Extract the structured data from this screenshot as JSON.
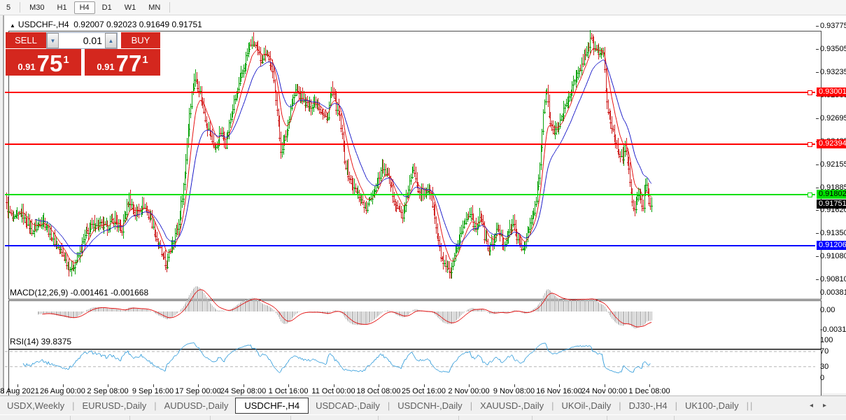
{
  "toolbar": {
    "timeframes": [
      "5",
      "M30",
      "H1",
      "H4",
      "D1",
      "W1",
      "MN"
    ],
    "active_timeframe": "H4"
  },
  "header": {
    "symbol": "USDCHF-,H4",
    "open": "0.92007",
    "high": "0.92023",
    "low": "0.91649",
    "close": "0.91751"
  },
  "trade_panel": {
    "sell_label": "SELL",
    "buy_label": "BUY",
    "volume": "0.01",
    "sell_price_small": "0.91",
    "sell_price_big": "75",
    "sell_price_sup": "1",
    "buy_price_small": "0.91",
    "buy_price_big": "77",
    "buy_price_sup": "1"
  },
  "indicators": {
    "macd_label": "MACD(12,26,9) -0.001461 -0.001668",
    "macd_axis": [
      "0.003811",
      "0.00",
      "-0.003115"
    ],
    "rsi_label": "RSI(14) 39.8375",
    "rsi_axis": [
      "100",
      "70",
      "30",
      "0"
    ]
  },
  "tabs": {
    "items": [
      "USDX,Weekly",
      "EURUSD-,Daily",
      "AUDUSD-,Daily",
      "USDCHF-,H4",
      "USDCAD-,Daily",
      "USDCNH-,Daily",
      "XAUUSD-,Daily",
      "UKOil-,Daily",
      "DJ30-,H4",
      "UK100-,Daily"
    ],
    "active": "USDCHF-,H4",
    "scroll_left_icon": "◂",
    "scroll_right_icon": "▸"
  },
  "colors": {
    "up_candle": "#0aa30a",
    "down_candle": "#cf2323",
    "ma_fast": "#e60f0f",
    "ma_slow": "#1818c8",
    "level_red": "#ff0000",
    "level_green": "#00e000",
    "level_blue": "#0000ff",
    "bid_badge_bg": "#000000",
    "macd_hist": "#b8b8b8",
    "macd_signal": "#e00000",
    "rsi_line": "#3aa0dc",
    "panel_red": "#d4271e"
  },
  "chart_data": {
    "type": "candlestick",
    "symbol": "USDCHF",
    "timeframe": "H4",
    "ohlc_current": {
      "open": 0.92007,
      "high": 0.92023,
      "low": 0.91649,
      "close": 0.91751
    },
    "price_ticks": [
      "0.93775",
      "0.93505",
      "0.93235",
      "0.92965",
      "0.92695",
      "0.92425",
      "0.92155",
      "0.91885",
      "0.91620",
      "0.91350",
      "0.91080",
      "0.90810"
    ],
    "x_ticks": [
      "18 Aug 2021",
      "26 Aug 00:00",
      "2 Sep 08:00",
      "9 Sep 16:00",
      "17 Sep 00:00",
      "24 Sep 08:00",
      "1 Oct 16:00",
      "11 Oct 00:00",
      "18 Oct 08:00",
      "25 Oct 16:00",
      "2 Nov 00:00",
      "9 Nov 08:00",
      "16 Nov 16:00",
      "24 Nov 00:00",
      "1 Dec 08:00"
    ],
    "ylim": [
      0.9081,
      0.93775
    ],
    "levels": [
      {
        "value": 0.93001,
        "label": "0.93001",
        "color": "red"
      },
      {
        "value": 0.92394,
        "label": "0.92394",
        "color": "red"
      },
      {
        "value": 0.91802,
        "label": "0.91802",
        "color": "green"
      },
      {
        "value": 0.91206,
        "label": "0.91206",
        "color": "blue"
      }
    ],
    "bid": {
      "value": 0.91751,
      "label": "0.91751"
    },
    "ma_fast_period": 10,
    "ma_slow_period": 24,
    "macd": {
      "fast": 12,
      "slow": 26,
      "signal": 9,
      "main_value": -0.001461,
      "signal_value": -0.001668,
      "axis_max": 0.003811,
      "axis_min": -0.003115
    },
    "rsi": {
      "period": 14,
      "value": 39.8375,
      "levels": [
        70,
        30
      ]
    },
    "close_anchors": [
      [
        8,
        0.9168
      ],
      [
        18,
        0.915
      ],
      [
        30,
        0.916
      ],
      [
        45,
        0.9138
      ],
      [
        60,
        0.9152
      ],
      [
        75,
        0.9128
      ],
      [
        90,
        0.9108
      ],
      [
        100,
        0.9094
      ],
      [
        110,
        0.9106
      ],
      [
        122,
        0.9136
      ],
      [
        135,
        0.9148
      ],
      [
        150,
        0.9142
      ],
      [
        162,
        0.9152
      ],
      [
        172,
        0.9136
      ],
      [
        183,
        0.9178
      ],
      [
        192,
        0.9158
      ],
      [
        203,
        0.917
      ],
      [
        215,
        0.915
      ],
      [
        228,
        0.9116
      ],
      [
        236,
        0.9096
      ],
      [
        245,
        0.9126
      ],
      [
        254,
        0.9146
      ],
      [
        262,
        0.92
      ],
      [
        270,
        0.9282
      ],
      [
        277,
        0.932
      ],
      [
        284,
        0.9304
      ],
      [
        292,
        0.927
      ],
      [
        300,
        0.9248
      ],
      [
        307,
        0.9233
      ],
      [
        314,
        0.9254
      ],
      [
        321,
        0.924
      ],
      [
        330,
        0.9278
      ],
      [
        340,
        0.9308
      ],
      [
        350,
        0.934
      ],
      [
        358,
        0.936
      ],
      [
        365,
        0.9352
      ],
      [
        372,
        0.9338
      ],
      [
        379,
        0.935
      ],
      [
        386,
        0.933
      ],
      [
        393,
        0.9298
      ],
      [
        400,
        0.9233
      ],
      [
        408,
        0.9252
      ],
      [
        415,
        0.9288
      ],
      [
        422,
        0.9303
      ],
      [
        430,
        0.9294
      ],
      [
        440,
        0.9284
      ],
      [
        450,
        0.929
      ],
      [
        460,
        0.9276
      ],
      [
        466,
        0.9267
      ],
      [
        472,
        0.9304
      ],
      [
        478,
        0.9288
      ],
      [
        485,
        0.9268
      ],
      [
        492,
        0.9218
      ],
      [
        500,
        0.9196
      ],
      [
        508,
        0.9184
      ],
      [
        515,
        0.9176
      ],
      [
        522,
        0.9163
      ],
      [
        530,
        0.918
      ],
      [
        538,
        0.9196
      ],
      [
        545,
        0.9214
      ],
      [
        552,
        0.9204
      ],
      [
        560,
        0.9182
      ],
      [
        568,
        0.9163
      ],
      [
        575,
        0.9156
      ],
      [
        583,
        0.919
      ],
      [
        590,
        0.9213
      ],
      [
        597,
        0.9186
      ],
      [
        605,
        0.918
      ],
      [
        612,
        0.919
      ],
      [
        618,
        0.9165
      ],
      [
        624,
        0.913
      ],
      [
        630,
        0.9105
      ],
      [
        637,
        0.9092
      ],
      [
        643,
        0.9088
      ],
      [
        650,
        0.9112
      ],
      [
        657,
        0.9136
      ],
      [
        664,
        0.915
      ],
      [
        671,
        0.9163
      ],
      [
        678,
        0.914
      ],
      [
        685,
        0.916
      ],
      [
        691,
        0.9132
      ],
      [
        697,
        0.9116
      ],
      [
        704,
        0.9128
      ],
      [
        711,
        0.9142
      ],
      [
        718,
        0.9122
      ],
      [
        725,
        0.9136
      ],
      [
        732,
        0.9148
      ],
      [
        739,
        0.9128
      ],
      [
        745,
        0.9116
      ],
      [
        752,
        0.9132
      ],
      [
        758,
        0.9152
      ],
      [
        764,
        0.9168
      ],
      [
        769,
        0.9205
      ],
      [
        774,
        0.9262
      ],
      [
        779,
        0.9308
      ],
      [
        784,
        0.9275
      ],
      [
        790,
        0.925
      ],
      [
        797,
        0.9262
      ],
      [
        804,
        0.9278
      ],
      [
        811,
        0.9296
      ],
      [
        818,
        0.931
      ],
      [
        825,
        0.9322
      ],
      [
        831,
        0.9336
      ],
      [
        837,
        0.935
      ],
      [
        843,
        0.9362
      ],
      [
        849,
        0.9352
      ],
      [
        855,
        0.9345
      ],
      [
        861,
        0.935
      ],
      [
        865,
        0.9292
      ],
      [
        871,
        0.9268
      ],
      [
        877,
        0.9248
      ],
      [
        883,
        0.9232
      ],
      [
        889,
        0.9222
      ],
      [
        893,
        0.924
      ],
      [
        898,
        0.9205
      ],
      [
        903,
        0.9162
      ],
      [
        907,
        0.9168
      ],
      [
        912,
        0.919
      ],
      [
        917,
        0.916
      ],
      [
        922,
        0.92
      ],
      [
        927,
        0.9165
      ],
      [
        932,
        0.91751
      ]
    ]
  }
}
